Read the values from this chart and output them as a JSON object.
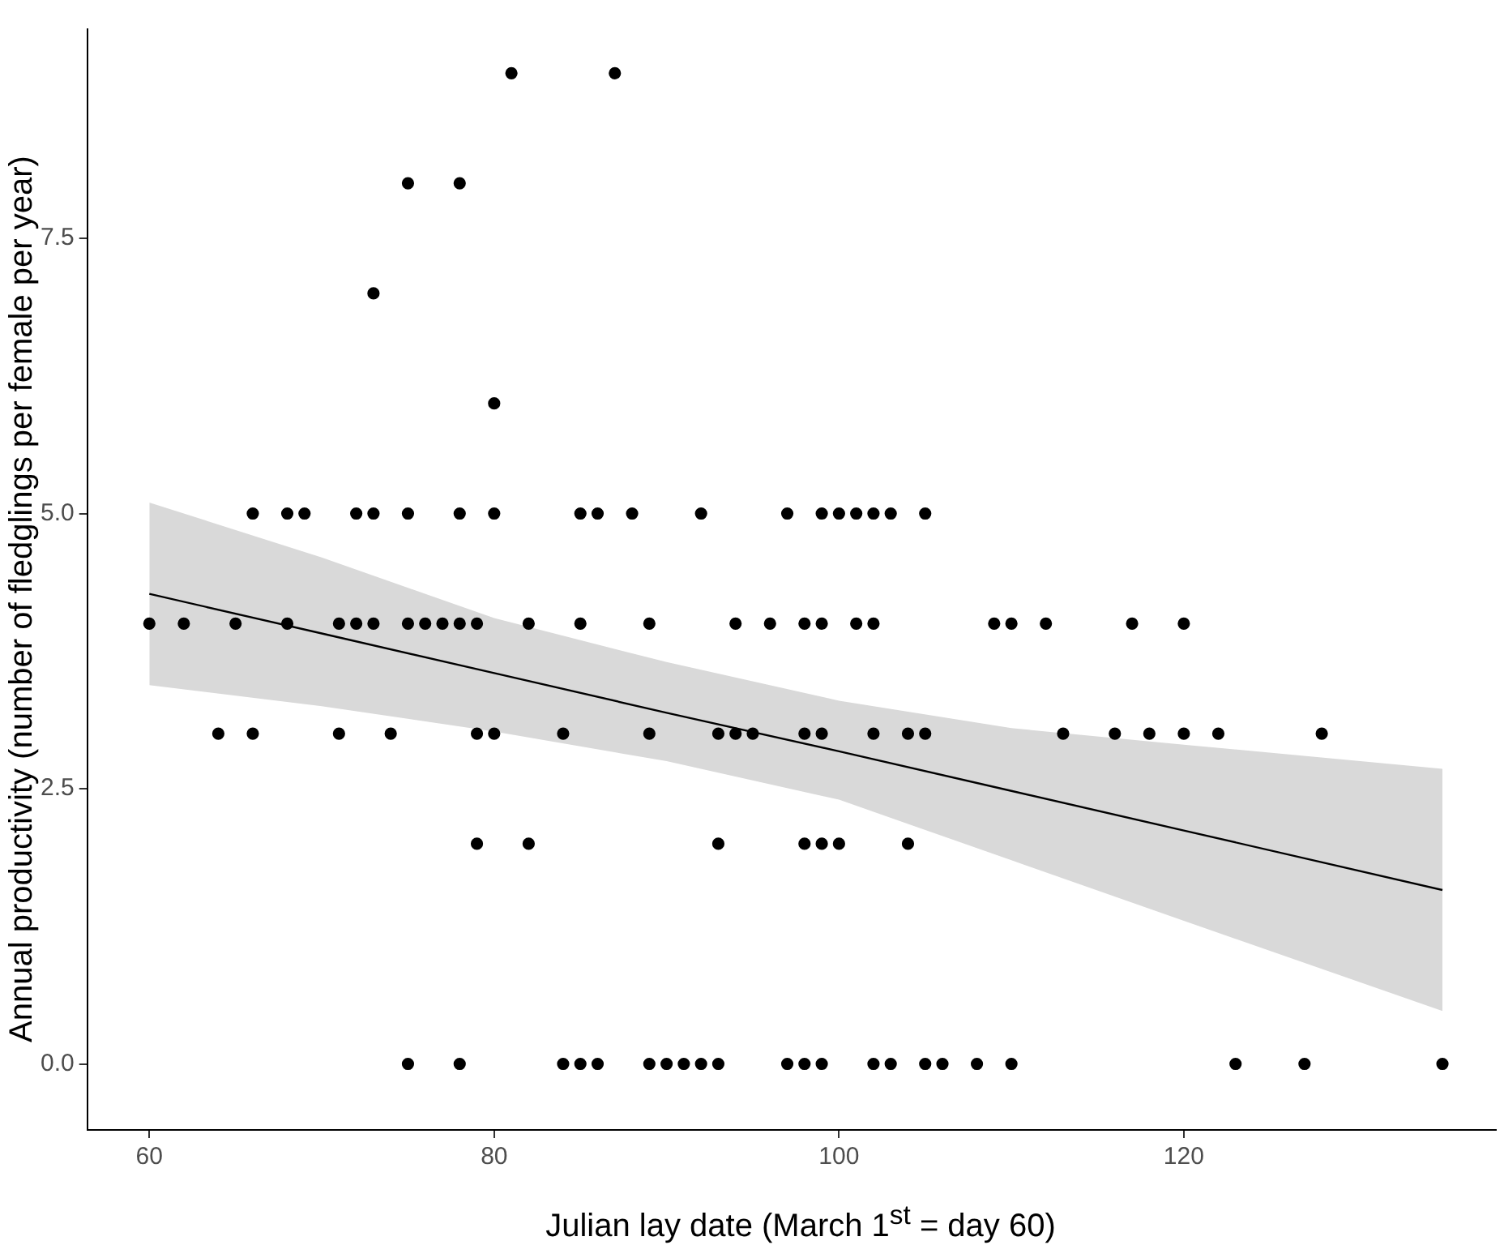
{
  "chart_data": {
    "type": "scatter",
    "xlabel": "Julian lay date (March 1$^{st}$ = day 60)",
    "ylabel": "Annual productivity (number of fledglings per female per year)",
    "xlim": [
      56.4,
      138.1
    ],
    "ylim": [
      -0.6,
      9.4
    ],
    "xticks": [
      60,
      80,
      100,
      120
    ],
    "yticks": [
      {
        "value": 0,
        "label": "0.0"
      },
      {
        "value": 2.5,
        "label": "2.5"
      },
      {
        "value": 5,
        "label": "5.0"
      },
      {
        "value": 7.5,
        "label": "7.5"
      }
    ],
    "grid": false,
    "legend": false,
    "series": [
      {
        "type": "line",
        "color": "#000000",
        "x": [
          60,
          70,
          80,
          90,
          100,
          110,
          120,
          135
        ],
        "values": [
          4.27,
          3.91,
          3.55,
          3.19,
          2.84,
          2.48,
          2.12,
          1.58
        ],
        "lower": [
          3.44,
          3.25,
          3.02,
          2.75,
          2.4,
          1.85,
          1.3,
          0.48
        ],
        "upper": [
          5.1,
          4.6,
          4.05,
          3.65,
          3.3,
          3.05,
          2.9,
          2.68
        ]
      },
      {
        "marker": "circle",
        "color": "#000000",
        "x": [
          81,
          87,
          75,
          78,
          73,
          80,
          66,
          68,
          69,
          72,
          73,
          75,
          78,
          80,
          85,
          86,
          88,
          92,
          97,
          99,
          100,
          101,
          102,
          103,
          105,
          60,
          62,
          65,
          68,
          71,
          72,
          73,
          75,
          76,
          77,
          78,
          79,
          82,
          85,
          89,
          94,
          96,
          98,
          99,
          101,
          102,
          109,
          110,
          112,
          117,
          120,
          64,
          66,
          71,
          74,
          79,
          80,
          84,
          89,
          93,
          94,
          95,
          98,
          99,
          102,
          104,
          105,
          113,
          116,
          118,
          120,
          122,
          128,
          79,
          82,
          93,
          98,
          99,
          100,
          104,
          75,
          78,
          84,
          85,
          86,
          89,
          90,
          91,
          92,
          93,
          97,
          98,
          99,
          102,
          103,
          105,
          106,
          108,
          110,
          123,
          127,
          135
        ],
        "values": [
          9,
          9,
          8,
          8,
          7,
          6,
          5,
          5,
          5,
          5,
          5,
          5,
          5,
          5,
          5,
          5,
          5,
          5,
          5,
          5,
          5,
          5,
          5,
          5,
          5,
          4,
          4,
          4,
          4,
          4,
          4,
          4,
          4,
          4,
          4,
          4,
          4,
          4,
          4,
          4,
          4,
          4,
          4,
          4,
          4,
          4,
          4,
          4,
          4,
          4,
          4,
          3,
          3,
          3,
          3,
          3,
          3,
          3,
          3,
          3,
          3,
          3,
          3,
          3,
          3,
          3,
          3,
          3,
          3,
          3,
          3,
          3,
          3,
          2,
          2,
          2,
          2,
          2,
          2,
          2,
          0,
          0,
          0,
          0,
          0,
          0,
          0,
          0,
          0,
          0,
          0,
          0,
          0,
          0,
          0,
          0,
          0,
          0,
          0,
          0,
          0,
          0
        ]
      }
    ]
  }
}
